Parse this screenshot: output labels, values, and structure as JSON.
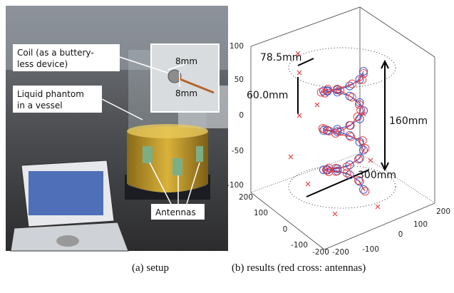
{
  "photo": {
    "coil_label": [
      "Coil (as a buttery-",
      "less device)"
    ],
    "dimension_labels": [
      "8mm",
      "8mm"
    ],
    "phantom_label": [
      "Liquid phantom",
      "in a vessel"
    ],
    "antennas_label": "Antennas"
  },
  "plot": {
    "z_ticks": [
      "100",
      "50",
      "0",
      "-50",
      "-100"
    ],
    "x_ticks": [
      "200",
      "100",
      "0",
      "-100",
      "-200"
    ],
    "y_ticks": [
      "-200",
      "-100",
      "0",
      "100",
      "200"
    ],
    "annotations": [
      "78.5mm",
      "60.0mm",
      "160mm",
      "300mm"
    ]
  },
  "captions": [
    "(a) setup",
    "(b) results (red cross: antennas)"
  ]
}
